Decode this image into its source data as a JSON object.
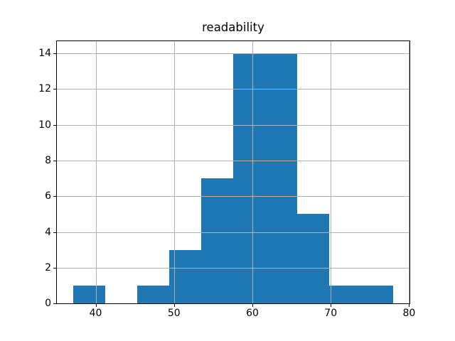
{
  "title": "readability",
  "chart_data": {
    "type": "bar",
    "subtype": "histogram",
    "title": "readability",
    "xlabel": "",
    "ylabel": "",
    "bin_edges": [
      37.1,
      41.19,
      45.28,
      49.37,
      53.46,
      57.55,
      61.64,
      65.73,
      69.82,
      73.91,
      78.0
    ],
    "counts": [
      1,
      0,
      1,
      3,
      7,
      14,
      14,
      5,
      1,
      1
    ],
    "total_count": 47,
    "x_ticks": [
      40,
      50,
      60,
      70,
      80
    ],
    "y_ticks": [
      0,
      2,
      4,
      6,
      8,
      10,
      12,
      14
    ],
    "xlim": [
      35.05,
      80.05
    ],
    "ylim": [
      0,
      14.7
    ],
    "grid": true,
    "grid_above_bars": true,
    "legend": null,
    "bar_color": "#1f77b4",
    "grid_color": "#b0b0b0",
    "spine_color": "#000000",
    "text_color": "#000000",
    "background_color": "#ffffff"
  }
}
